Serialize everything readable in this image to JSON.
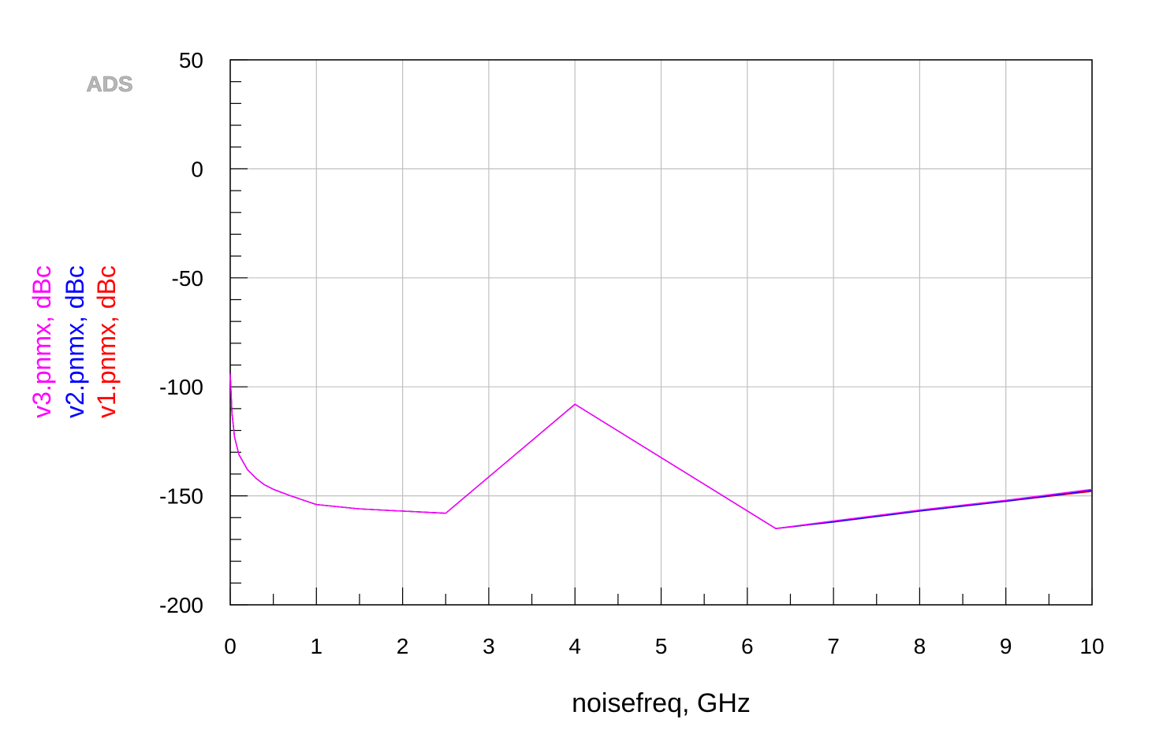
{
  "watermark": "ADS",
  "chart_data": {
    "type": "line",
    "title": "",
    "xlabel": "noisefreq, GHz",
    "xlim": [
      0,
      10
    ],
    "ylim": [
      -200,
      50
    ],
    "grid": true,
    "x_ticks": [
      0,
      1,
      2,
      3,
      4,
      5,
      6,
      7,
      8,
      9,
      10
    ],
    "x_tick_labels": [
      "0",
      "1",
      "2",
      "3",
      "4",
      "5",
      "6",
      "7",
      "8",
      "9",
      "10"
    ],
    "y_ticks": [
      50,
      0,
      -50,
      -100,
      -150,
      -200
    ],
    "y_tick_labels": [
      "50",
      "0",
      "-50",
      "-100",
      "-150",
      "-200"
    ],
    "ylabels": [
      {
        "text": "v3.pnmx, dBc",
        "color": "#ff00ff"
      },
      {
        "text": "v2.pnmx, dBc",
        "color": "#0000ff"
      },
      {
        "text": "v1.pnmx, dBc",
        "color": "#ff0000"
      }
    ],
    "series": [
      {
        "name": "v1.pnmx, dBc",
        "color": "#ff0000",
        "x": [
          0,
          0.02,
          0.05,
          0.1,
          0.2,
          0.3,
          0.4,
          0.5,
          0.7,
          1.0,
          1.5,
          2.0,
          2.5,
          4.0,
          6.33,
          7.0,
          8.0,
          9.0,
          10.0
        ],
        "y": [
          -94,
          -112,
          -123,
          -131,
          -138,
          -142,
          -145,
          -147,
          -150,
          -154,
          -156,
          -157,
          -158,
          -108,
          -165,
          -162,
          -157,
          -152.5,
          -148
        ]
      },
      {
        "name": "v2.pnmx, dBc",
        "color": "#0000ff",
        "x": [
          0,
          0.02,
          0.05,
          0.1,
          0.2,
          0.3,
          0.4,
          0.5,
          0.7,
          1.0,
          1.5,
          2.0,
          2.5,
          4.0,
          6.33,
          7.0,
          8.0,
          9.0,
          10.0
        ],
        "y": [
          -94,
          -112,
          -123,
          -131,
          -138,
          -142,
          -145,
          -147,
          -150,
          -154,
          -156,
          -157,
          -158,
          -108,
          -165,
          -162,
          -157,
          -152.5,
          -147.5
        ]
      },
      {
        "name": "v3.pnmx, dBc",
        "color": "#ff00ff",
        "x": [
          0,
          0.02,
          0.05,
          0.1,
          0.2,
          0.3,
          0.4,
          0.5,
          0.7,
          1.0,
          1.5,
          2.0,
          2.5,
          4.0,
          6.33,
          7.0,
          8.0,
          9.0,
          10.0
        ],
        "y": [
          -94,
          -112,
          -123,
          -131,
          -138,
          -142,
          -145,
          -147,
          -150,
          -154,
          -156,
          -157,
          -158,
          -108,
          -165,
          -161.5,
          -156.5,
          -152,
          -147
        ]
      }
    ]
  }
}
